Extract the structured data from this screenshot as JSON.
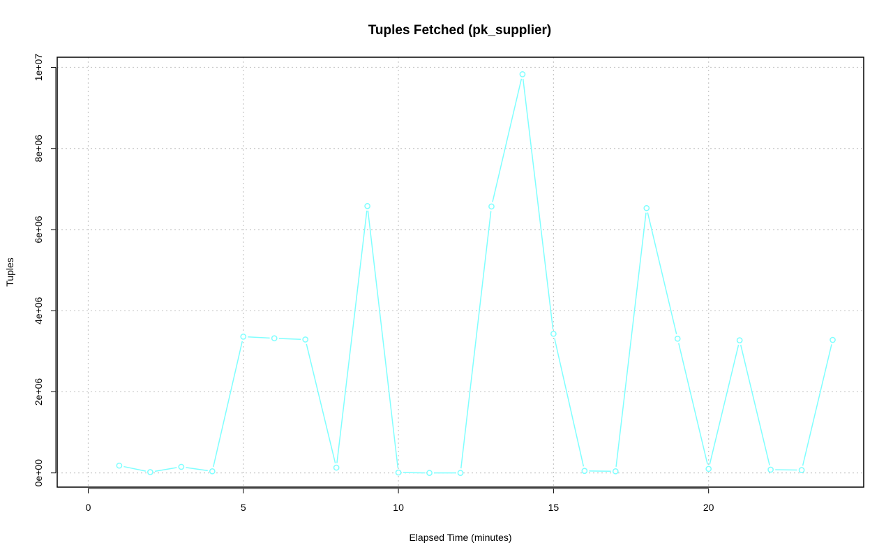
{
  "chart_data": {
    "type": "line",
    "title": "Tuples Fetched (pk_supplier)",
    "xlabel": "Elapsed Time (minutes)",
    "ylabel": "Tuples",
    "xlim": [
      -1,
      25
    ],
    "ylim": [
      -350000,
      10250000
    ],
    "x_ticks": [
      0,
      5,
      10,
      15,
      20
    ],
    "y_ticks": [
      0,
      2000000,
      4000000,
      6000000,
      8000000,
      10000000
    ],
    "y_tick_labels": [
      "0e+00",
      "2e+06",
      "4e+06",
      "6e+06",
      "8e+06",
      "1e+07"
    ],
    "grid": true,
    "series": [
      {
        "color": "#7fffff",
        "x": [
          1,
          2,
          3,
          4,
          5,
          6,
          7,
          8,
          9,
          10,
          11,
          12,
          13,
          14,
          15,
          16,
          17,
          18,
          19,
          20,
          21,
          22,
          23,
          24
        ],
        "y": [
          180000,
          20000,
          150000,
          40000,
          3360000,
          3320000,
          3290000,
          130000,
          6580000,
          10000,
          0,
          0,
          6570000,
          9830000,
          3430000,
          50000,
          40000,
          6530000,
          3310000,
          100000,
          3270000,
          80000,
          70000,
          3280000
        ]
      }
    ]
  }
}
